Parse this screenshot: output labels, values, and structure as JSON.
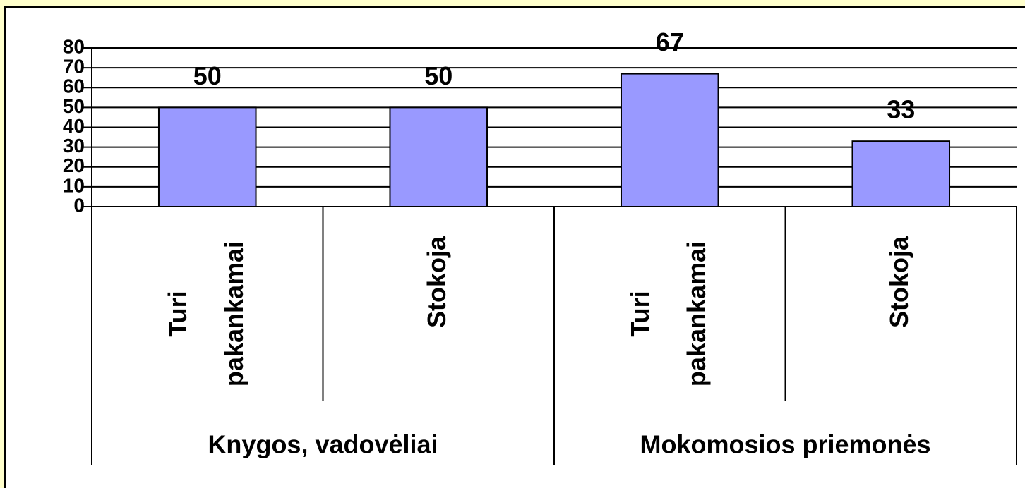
{
  "chart_data": {
    "type": "bar",
    "categories": [
      "Turi pakankamai",
      "Stokoja",
      "Turi pakankamai",
      "Stokoja"
    ],
    "groups": [
      "Knygos, vadovėliai",
      "Mokomosios priemonės"
    ],
    "values": [
      50,
      50,
      67,
      33
    ],
    "color": "#9999ff",
    "ylim": [
      0,
      80
    ],
    "yticks": [
      0,
      10,
      20,
      30,
      40,
      50,
      60,
      70,
      80
    ],
    "grid": true
  }
}
